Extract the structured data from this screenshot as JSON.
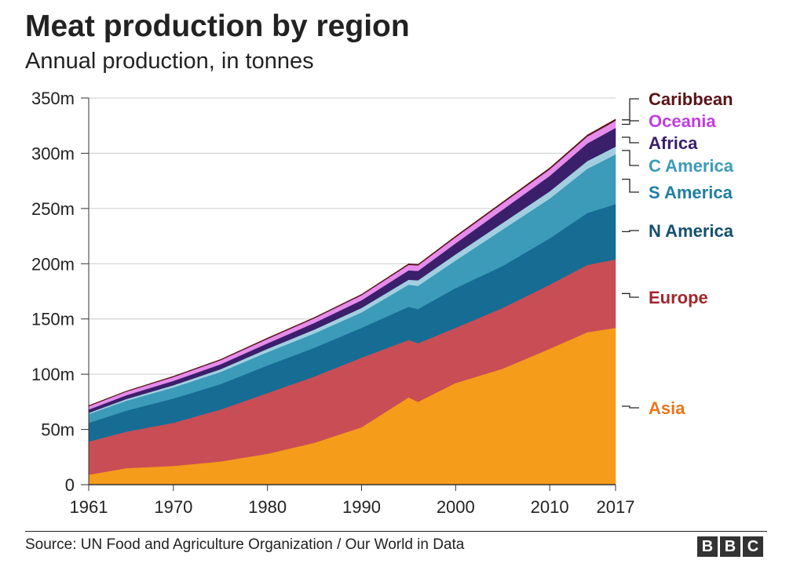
{
  "footer": {
    "source": "Source: UN Food and Agriculture Organization / Our World in Data",
    "logo": [
      "B",
      "B",
      "C"
    ]
  },
  "chart_data": {
    "type": "area",
    "stacked": true,
    "title": "Meat production by region",
    "subtitle": "Annual production, in tonnes",
    "xlim": [
      1961,
      2017
    ],
    "ylim": [
      0,
      350
    ],
    "y_unit_suffix": "m",
    "x_ticks": [
      "1961",
      "1970",
      "1980",
      "1990",
      "2000",
      "2010",
      "2017"
    ],
    "y_ticks": [
      "0",
      "50m",
      "100m",
      "150m",
      "200m",
      "250m",
      "300m",
      "350m"
    ],
    "grid": true,
    "x": [
      1961,
      1965,
      1970,
      1975,
      1980,
      1985,
      1990,
      1995,
      1996,
      2000,
      2005,
      2010,
      2014,
      2017
    ],
    "series": [
      {
        "name": "Asia",
        "color": "#f59c1a",
        "values": [
          9,
          15,
          17,
          21,
          28,
          38,
          52,
          79,
          75,
          92,
          105,
          123,
          138,
          142
        ]
      },
      {
        "name": "Europe",
        "color": "#c94d55",
        "values": [
          30,
          33,
          39,
          47,
          55,
          60,
          63,
          52,
          53,
          50,
          55,
          58,
          61,
          62
        ]
      },
      {
        "name": "N America",
        "color": "#176c94",
        "values": [
          17,
          19,
          22,
          23,
          25,
          26,
          27,
          30,
          31,
          36,
          38,
          42,
          47,
          50
        ]
      },
      {
        "name": "S America",
        "color": "#3b9bb8",
        "values": [
          8,
          9,
          10,
          11,
          12,
          13,
          14,
          20,
          21,
          25,
          33,
          36,
          40,
          45
        ]
      },
      {
        "name": "C America",
        "color": "#a2cfe0",
        "values": [
          1,
          1.5,
          2,
          2.5,
          3,
          3.5,
          4,
          4.5,
          5,
          5.5,
          6,
          6.5,
          7,
          7
        ]
      },
      {
        "name": "Africa",
        "color": "#3a1f6b",
        "values": [
          3,
          3.5,
          4,
          4.5,
          5,
          6,
          7,
          8.5,
          8.5,
          10,
          12,
          14,
          16,
          17
        ]
      },
      {
        "name": "Oceania",
        "color": "#e58ced",
        "values": [
          3,
          3.2,
          3.5,
          3.7,
          4,
          4.2,
          4.5,
          5,
          5,
          5.5,
          5.8,
          6,
          6.2,
          6.5
        ]
      },
      {
        "name": "Caribbean",
        "color": "#5a1216",
        "values": [
          0.6,
          0.6,
          0.7,
          0.7,
          0.8,
          0.8,
          0.9,
          1,
          1,
          1.1,
          1.2,
          1.3,
          1.4,
          1.5
        ]
      }
    ],
    "legend_placement": "right",
    "label_colors": {
      "Caribbean": "#5a1216",
      "Oceania": "#c13ee0",
      "Africa": "#3a1f6b",
      "C America": "#3b9bb8",
      "S America": "#1f7ea3",
      "N America": "#14506e",
      "Europe": "#a3262d",
      "Asia": "#e8761c"
    }
  }
}
